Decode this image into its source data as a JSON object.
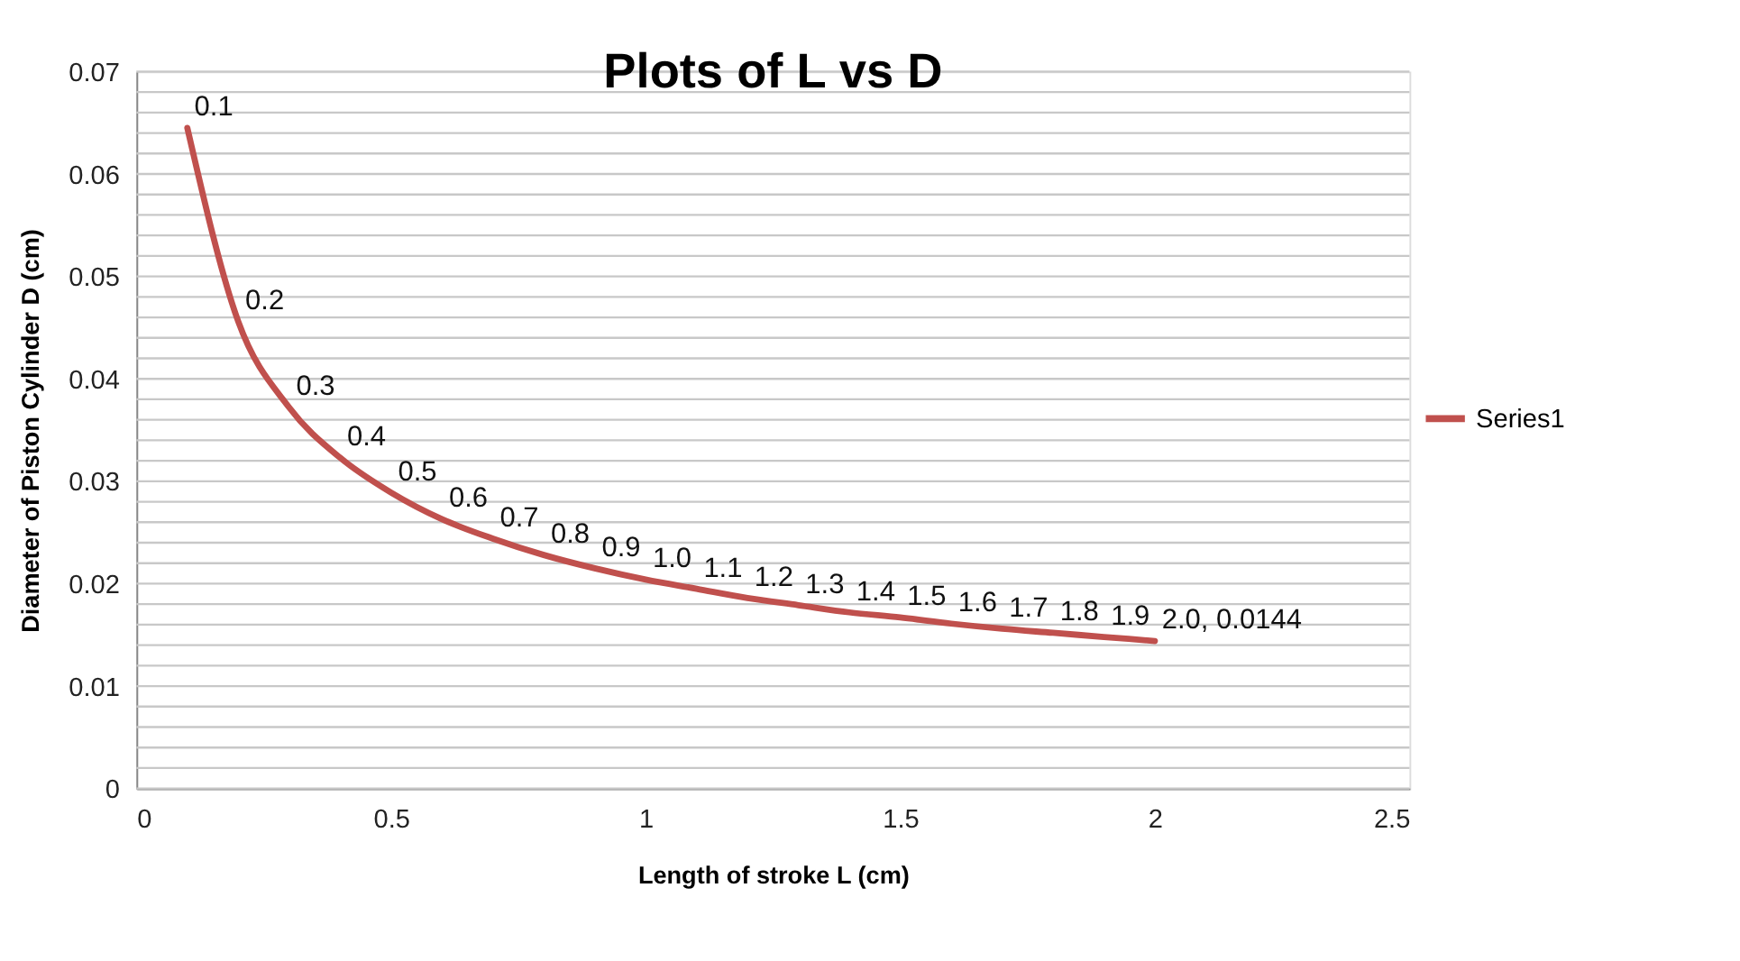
{
  "chart_data": {
    "type": "line",
    "title": "Plots of L vs D",
    "xlabel": "Length of stroke L (cm)",
    "ylabel": "Diameter of Piston Cylinder D (cm)",
    "x": [
      0.1,
      0.2,
      0.3,
      0.4,
      0.5,
      0.6,
      0.7,
      0.8,
      0.9,
      1.0,
      1.1,
      1.2,
      1.3,
      1.4,
      1.5,
      1.6,
      1.7,
      1.8,
      1.9,
      2.0
    ],
    "series": [
      {
        "name": "Series1",
        "color": "#c0504d",
        "values": [
          0.0645,
          0.0456,
          0.0372,
          0.0323,
          0.0289,
          0.0263,
          0.0244,
          0.0228,
          0.0215,
          0.0204,
          0.0195,
          0.0186,
          0.0179,
          0.0172,
          0.0167,
          0.0161,
          0.0156,
          0.0152,
          0.0148,
          0.0144
        ]
      }
    ],
    "annotations": [
      {
        "text": "0.1",
        "x": 0.1,
        "y": 0.0645
      },
      {
        "text": "0.2",
        "x": 0.2,
        "y": 0.0456
      },
      {
        "text": "0.3",
        "x": 0.3,
        "y": 0.0372
      },
      {
        "text": "0.4",
        "x": 0.4,
        "y": 0.0323
      },
      {
        "text": "0.5",
        "x": 0.5,
        "y": 0.0289
      },
      {
        "text": "0.6",
        "x": 0.6,
        "y": 0.0263
      },
      {
        "text": "0.7",
        "x": 0.7,
        "y": 0.0244
      },
      {
        "text": "0.8",
        "x": 0.8,
        "y": 0.0228
      },
      {
        "text": "0.9",
        "x": 0.9,
        "y": 0.0215
      },
      {
        "text": "1.0",
        "x": 1.0,
        "y": 0.0204
      },
      {
        "text": "1.1",
        "x": 1.1,
        "y": 0.0195
      },
      {
        "text": "1.2",
        "x": 1.2,
        "y": 0.0186
      },
      {
        "text": "1.3",
        "x": 1.3,
        "y": 0.0179
      },
      {
        "text": "1.4",
        "x": 1.4,
        "y": 0.0172
      },
      {
        "text": "1.5",
        "x": 1.5,
        "y": 0.0167
      },
      {
        "text": "1.6",
        "x": 1.6,
        "y": 0.0161
      },
      {
        "text": "1.7",
        "x": 1.7,
        "y": 0.0156
      },
      {
        "text": "1.8",
        "x": 1.8,
        "y": 0.0152
      },
      {
        "text": "1.9",
        "x": 1.9,
        "y": 0.0148
      },
      {
        "text": "2.0, 0.0144",
        "x": 2.0,
        "y": 0.0144
      }
    ],
    "xlim": [
      0,
      2.5
    ],
    "xticks": [
      0,
      0.5,
      1,
      1.5,
      2,
      2.5
    ],
    "ylim": [
      0,
      0.07
    ],
    "yticks": [
      0,
      {
        "value": 0.002,
        "label": null
      },
      {
        "value": 0.004,
        "label": null
      },
      {
        "value": 0.006,
        "label": null
      },
      {
        "value": 0.008,
        "label": null
      },
      0.01,
      {
        "value": 0.012,
        "label": null
      },
      {
        "value": 0.014,
        "label": null
      },
      {
        "value": 0.016,
        "label": null
      },
      {
        "value": 0.018,
        "label": null
      },
      0.02,
      {
        "value": 0.022,
        "label": null
      },
      {
        "value": 0.024,
        "label": null
      },
      {
        "value": 0.026,
        "label": null
      },
      {
        "value": 0.028,
        "label": null
      },
      0.03,
      {
        "value": 0.032,
        "label": null
      },
      {
        "value": 0.034,
        "label": null
      },
      {
        "value": 0.036,
        "label": null
      },
      {
        "value": 0.038,
        "label": null
      },
      0.04,
      {
        "value": 0.042,
        "label": null
      },
      {
        "value": 0.044,
        "label": null
      },
      {
        "value": 0.046,
        "label": null
      },
      {
        "value": 0.048,
        "label": null
      },
      0.05,
      {
        "value": 0.052,
        "label": null
      },
      {
        "value": 0.054,
        "label": null
      },
      {
        "value": 0.056,
        "label": null
      },
      {
        "value": 0.058,
        "label": null
      },
      0.06,
      {
        "value": 0.062,
        "label": null
      },
      {
        "value": 0.064,
        "label": null
      },
      {
        "value": 0.066,
        "label": null
      },
      {
        "value": 0.068,
        "label": null
      },
      0.07
    ],
    "grid": "y",
    "legend": "right",
    "marker": "none",
    "line_style": "solid"
  }
}
